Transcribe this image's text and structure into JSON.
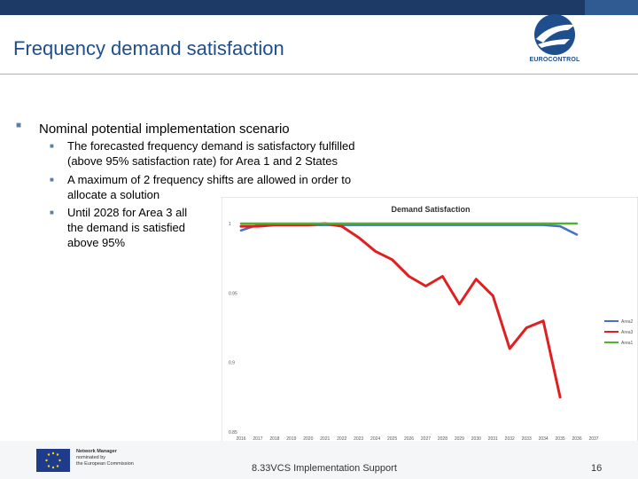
{
  "header": {
    "title": "Frequency demand satisfaction",
    "logo_text": "EUROCONTROL"
  },
  "content": {
    "bullet": "Nominal potential implementation scenario",
    "subbullets": [
      {
        "line1": "The forecasted frequency demand is satisfactory fulfilled",
        "line2": "(above 95% satisfaction rate) for Area 1 and 2 States"
      },
      {
        "line1": "A maximum of 2 frequency shifts are allowed in order to",
        "line2": "allocate a solution"
      },
      {
        "line1": "Until 2028 for Area 3 all",
        "line2": "the demand is satisfied",
        "line3": "above 95%"
      }
    ]
  },
  "footer": {
    "nm_lines": [
      "Network Manager",
      "nominated by",
      "the European Commission"
    ],
    "text": "8.33VCS Implementation Support",
    "page": "16"
  },
  "chart_data": {
    "type": "line",
    "title": "Demand Satisfaction",
    "y_tick_labels": [
      "1",
      "0.95",
      "0.9",
      "0.85"
    ],
    "ylim": [
      0.85,
      1.0
    ],
    "x_tick_labels": [
      "2016",
      "2017",
      "2018",
      "2019",
      "2020",
      "2021",
      "2022",
      "2023",
      "2024",
      "2025",
      "2026",
      "2027",
      "2028",
      "2029",
      "2030",
      "2031",
      "2032",
      "2033",
      "2034",
      "2035",
      "2036",
      "2037"
    ],
    "series": [
      {
        "name": "Area2",
        "color": "#4472c4",
        "values": [
          0.995,
          0.999,
          0.999,
          0.999,
          0.999,
          0.999,
          0.999,
          0.999,
          0.999,
          0.999,
          0.999,
          0.999,
          0.999,
          0.999,
          0.999,
          0.999,
          0.999,
          0.999,
          0.999,
          0.998,
          0.992,
          null
        ]
      },
      {
        "name": "Area3",
        "color": "#e02020",
        "values": [
          0.998,
          0.998,
          0.999,
          0.999,
          0.999,
          1.0,
          0.998,
          0.99,
          0.98,
          0.974,
          0.962,
          0.955,
          0.962,
          0.942,
          0.96,
          0.948,
          0.91,
          0.925,
          0.93,
          0.875,
          null,
          null
        ]
      },
      {
        "name": "Area1",
        "color": "#55b030",
        "values": [
          1.0,
          1.0,
          1.0,
          1.0,
          1.0,
          1.0,
          1.0,
          1.0,
          1.0,
          1.0,
          1.0,
          1.0,
          1.0,
          1.0,
          1.0,
          1.0,
          1.0,
          1.0,
          1.0,
          1.0,
          1.0,
          null
        ]
      }
    ]
  }
}
